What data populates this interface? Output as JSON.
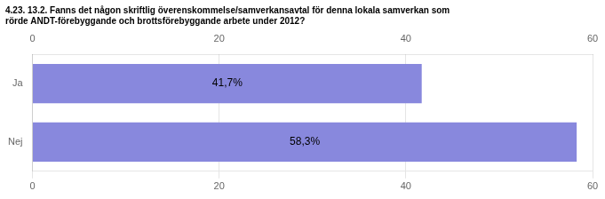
{
  "chart_data": {
    "type": "bar",
    "orientation": "horizontal",
    "title": [
      "4.23. 13.2. Fanns det någon skriftlig överenskommelse/samverkansavtal för denna lokala samverkan som",
      "rörde ANDT-förebyggande och brottsförebyggande arbete under 2012?"
    ],
    "categories": [
      "Ja",
      "Nej"
    ],
    "values": [
      41.7,
      58.3
    ],
    "value_labels": [
      "41,7%",
      "58,3%"
    ],
    "data_labels": true,
    "color": "#8888dd",
    "xlim": [
      0,
      60
    ],
    "xticks": [
      0,
      20,
      40,
      60
    ],
    "grid": true
  }
}
